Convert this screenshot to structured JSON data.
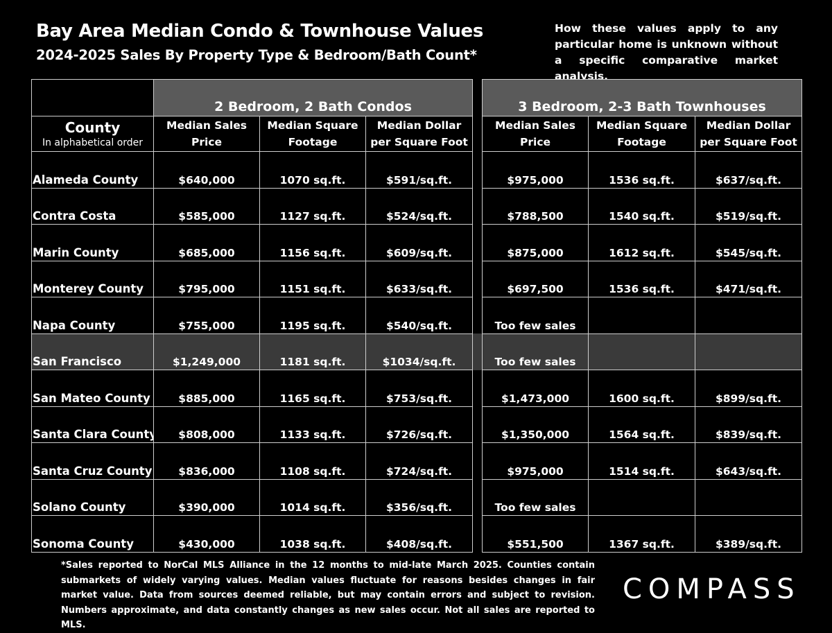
{
  "header": {
    "title": "Bay Area Median Condo & Townhouse Values",
    "subtitle": "2024-2025 Sales By Property Type & Bedroom/Bath Count*",
    "note": "How these values apply to any particular home is unknown without a specific comparative market analysis."
  },
  "table": {
    "group_condos": "2 Bedroom, 2 Bath Condos",
    "group_townhouses": "3 Bedroom, 2-3 Bath Townhouses",
    "county_header": "County",
    "county_subheader": "In alphabetical order",
    "col_price_1": "Median Sales",
    "col_price_2": "Price",
    "col_sqft_1": "Median Square",
    "col_sqft_2": "Footage",
    "col_ppsf_1": "Median Dollar",
    "col_ppsf_2": "per Square Foot",
    "rows": [
      {
        "county": "Alameda County",
        "c_price": "$640,000",
        "c_sqft": "1070 sq.ft.",
        "c_ppsf": "$591/sq.ft.",
        "t_price": "$975,000",
        "t_sqft": "1536 sq.ft.",
        "t_ppsf": "$637/sq.ft."
      },
      {
        "county": "Contra Costa",
        "c_price": "$585,000",
        "c_sqft": "1127 sq.ft.",
        "c_ppsf": "$524/sq.ft.",
        "t_price": "$788,500",
        "t_sqft": "1540 sq.ft.",
        "t_ppsf": "$519/sq.ft."
      },
      {
        "county": "Marin County",
        "c_price": "$685,000",
        "c_sqft": "1156 sq.ft.",
        "c_ppsf": "$609/sq.ft.",
        "t_price": "$875,000",
        "t_sqft": "1612 sq.ft.",
        "t_ppsf": "$545/sq.ft."
      },
      {
        "county": "Monterey County",
        "c_price": "$795,000",
        "c_sqft": "1151 sq.ft.",
        "c_ppsf": "$633/sq.ft.",
        "t_price": "$697,500",
        "t_sqft": "1536 sq.ft.",
        "t_ppsf": "$471/sq.ft."
      },
      {
        "county": "Napa County",
        "c_price": "$755,000",
        "c_sqft": "1195 sq.ft.",
        "c_ppsf": "$540/sq.ft.",
        "t_price": "Too few sales",
        "t_sqft": "",
        "t_ppsf": ""
      },
      {
        "county": "San Francisco",
        "c_price": "$1,249,000",
        "c_sqft": "1181 sq.ft.",
        "c_ppsf": "$1034/sq.ft.",
        "t_price": "Too few sales",
        "t_sqft": "",
        "t_ppsf": ""
      },
      {
        "county": "San Mateo County",
        "c_price": "$885,000",
        "c_sqft": "1165 sq.ft.",
        "c_ppsf": "$753/sq.ft.",
        "t_price": "$1,473,000",
        "t_sqft": "1600 sq.ft.",
        "t_ppsf": "$899/sq.ft."
      },
      {
        "county": "Santa Clara County",
        "c_price": "$808,000",
        "c_sqft": "1133 sq.ft.",
        "c_ppsf": "$726/sq.ft.",
        "t_price": "$1,350,000",
        "t_sqft": "1564 sq.ft.",
        "t_ppsf": "$839/sq.ft."
      },
      {
        "county": "Santa Cruz County",
        "c_price": "$836,000",
        "c_sqft": "1108 sq.ft.",
        "c_ppsf": "$724/sq.ft.",
        "t_price": "$975,000",
        "t_sqft": "1514 sq.ft.",
        "t_ppsf": "$643/sq.ft."
      },
      {
        "county": "Solano County",
        "c_price": "$390,000",
        "c_sqft": "1014 sq.ft.",
        "c_ppsf": "$356/sq.ft.",
        "t_price": "Too few sales",
        "t_sqft": "",
        "t_ppsf": ""
      },
      {
        "county": "Sonoma County",
        "c_price": "$430,000",
        "c_sqft": "1038 sq.ft.",
        "c_ppsf": "$408/sq.ft.",
        "t_price": "$551,500",
        "t_sqft": "1367 sq.ft.",
        "t_ppsf": "$389/sq.ft."
      }
    ]
  },
  "footer": {
    "footnote": "*Sales reported to NorCal MLS Alliance in the 12 months to mid-late March 2025. Counties contain submarkets of widely varying values. Median values fluctuate for reasons besides changes in fair market value. Data from sources deemed reliable, but may contain errors and subject to revision.  Numbers approximate, and data constantly changes as new sales occur. Not all sales are reported to MLS.",
    "logo": "COMPASS"
  },
  "colors": {
    "background": "#000000",
    "header_band": "#5a5a5a",
    "highlight_row": "#3a3a3a",
    "grid_lines": "#cfcfcf"
  }
}
